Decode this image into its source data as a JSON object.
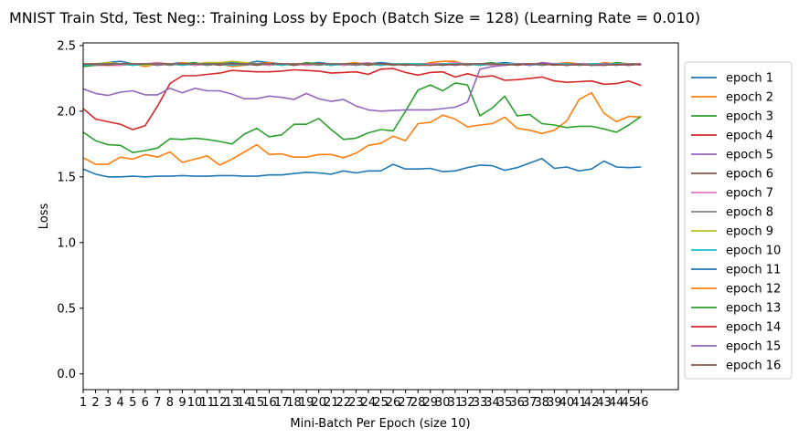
{
  "chart_data": {
    "type": "line",
    "title": "MNIST Train Std, Test Neg:: Training Loss by Epoch (Batch Size = 128) (Learning Rate = 0.010)",
    "xlabel": "Mini-Batch Per Epoch (size 10)",
    "ylabel": "Loss",
    "xlim": [
      1,
      49
    ],
    "ylim": [
      -0.12,
      2.52
    ],
    "x_ticks": [
      1,
      2,
      3,
      4,
      5,
      6,
      7,
      8,
      9,
      10,
      11,
      12,
      13,
      14,
      15,
      16,
      17,
      18,
      19,
      20,
      21,
      22,
      23,
      24,
      25,
      26,
      27,
      28,
      29,
      30,
      31,
      32,
      33,
      34,
      35,
      36,
      37,
      38,
      39,
      40,
      41,
      42,
      43,
      44,
      45,
      46
    ],
    "y_ticks": [
      0.0,
      0.5,
      1.0,
      1.5,
      2.0,
      2.5
    ],
    "y_tick_labels": [
      "0.0",
      "0.5",
      "1.0",
      "1.5",
      "2.0",
      "2.5"
    ],
    "grid": false,
    "legend_position": "right-outside",
    "series": [
      {
        "name": "epoch 1",
        "color": "#1f77b4",
        "values": [
          2.35,
          2.36,
          2.37,
          2.38,
          2.36,
          2.35,
          2.36,
          2.36,
          2.37,
          2.35,
          2.36,
          2.36,
          2.37,
          2.36,
          2.38,
          2.37,
          2.36,
          2.35,
          2.36,
          2.37,
          2.36,
          2.35,
          2.36,
          2.36,
          2.37,
          2.36,
          2.35,
          2.36,
          2.36,
          2.35,
          2.36,
          2.36,
          2.35,
          2.36,
          2.37,
          2.36,
          2.35,
          2.36,
          2.36,
          2.35,
          2.36,
          2.35,
          2.36,
          2.36,
          2.35,
          2.36
        ]
      },
      {
        "name": "epoch 2",
        "color": "#ff7f0e",
        "values": [
          2.36,
          2.35,
          2.36,
          2.35,
          2.36,
          2.34,
          2.36,
          2.35,
          2.37,
          2.36,
          2.35,
          2.36,
          2.34,
          2.35,
          2.36,
          2.37,
          2.35,
          2.36,
          2.35,
          2.36,
          2.35,
          2.36,
          2.37,
          2.35,
          2.36,
          2.35,
          2.36,
          2.35,
          2.37,
          2.38,
          2.38,
          2.35,
          2.36,
          2.35,
          2.36,
          2.35,
          2.36,
          2.35,
          2.36,
          2.37,
          2.36,
          2.35,
          2.37,
          2.36,
          2.35,
          2.36
        ]
      },
      {
        "name": "epoch 3",
        "color": "#2ca02c",
        "values": [
          2.34,
          2.35,
          2.36,
          2.36,
          2.35,
          2.36,
          2.35,
          2.36,
          2.36,
          2.37,
          2.35,
          2.36,
          2.35,
          2.36,
          2.35,
          2.36,
          2.36,
          2.35,
          2.37,
          2.36,
          2.35,
          2.36,
          2.35,
          2.36,
          2.35,
          2.36,
          2.36,
          2.35,
          2.36,
          2.36,
          2.35,
          2.36,
          2.36,
          2.37,
          2.35,
          2.36,
          2.35,
          2.36,
          2.36,
          2.35,
          2.36,
          2.36,
          2.35,
          2.37,
          2.36,
          2.36
        ]
      },
      {
        "name": "epoch 4",
        "color": "#d62728",
        "values": [
          2.36,
          2.35,
          2.35,
          2.35,
          2.36,
          2.36,
          2.35,
          2.36,
          2.36,
          2.35,
          2.36,
          2.36,
          2.35,
          2.36,
          2.36,
          2.35,
          2.36,
          2.35,
          2.36,
          2.36,
          2.35,
          2.36,
          2.36,
          2.36,
          2.35,
          2.36,
          2.36,
          2.35,
          2.36,
          2.36,
          2.36,
          2.35,
          2.36,
          2.36,
          2.35,
          2.36,
          2.36,
          2.35,
          2.36,
          2.36,
          2.35,
          2.36,
          2.36,
          2.35,
          2.36,
          2.36
        ]
      },
      {
        "name": "epoch 5",
        "color": "#9467bd",
        "values": [
          2.35,
          2.36,
          2.36,
          2.35,
          2.36,
          2.36,
          2.35,
          2.36,
          2.36,
          2.35,
          2.36,
          2.36,
          2.35,
          2.36,
          2.36,
          2.35,
          2.36,
          2.36,
          2.35,
          2.36,
          2.36,
          2.35,
          2.36,
          2.36,
          2.35,
          2.36,
          2.36,
          2.35,
          2.36,
          2.36,
          2.35,
          2.36,
          2.36,
          2.35,
          2.36,
          2.36,
          2.35,
          2.36,
          2.36,
          2.35,
          2.36,
          2.36,
          2.35,
          2.36,
          2.35,
          2.36
        ]
      },
      {
        "name": "epoch 6",
        "color": "#8c564b",
        "values": [
          2.36,
          2.36,
          2.35,
          2.36,
          2.36,
          2.35,
          2.36,
          2.36,
          2.35,
          2.36,
          2.36,
          2.35,
          2.36,
          2.36,
          2.35,
          2.36,
          2.36,
          2.35,
          2.36,
          2.36,
          2.35,
          2.36,
          2.36,
          2.35,
          2.36,
          2.36,
          2.35,
          2.36,
          2.36,
          2.35,
          2.36,
          2.36,
          2.35,
          2.36,
          2.36,
          2.35,
          2.36,
          2.36,
          2.35,
          2.36,
          2.36,
          2.35,
          2.36,
          2.36,
          2.35,
          2.36
        ]
      },
      {
        "name": "epoch 7",
        "color": "#e377c2",
        "values": [
          2.35,
          2.36,
          2.36,
          2.35,
          2.36,
          2.36,
          2.37,
          2.36,
          2.36,
          2.35,
          2.36,
          2.36,
          2.35,
          2.36,
          2.36,
          2.35,
          2.36,
          2.36,
          2.35,
          2.36,
          2.36,
          2.35,
          2.36,
          2.37,
          2.35,
          2.36,
          2.36,
          2.35,
          2.36,
          2.36,
          2.37,
          2.36,
          2.36,
          2.35,
          2.36,
          2.36,
          2.35,
          2.37,
          2.36,
          2.35,
          2.36,
          2.36,
          2.35,
          2.36,
          2.36,
          2.35
        ]
      },
      {
        "name": "epoch 8",
        "color": "#7f7f7f",
        "values": [
          2.36,
          2.35,
          2.36,
          2.36,
          2.35,
          2.36,
          2.36,
          2.35,
          2.36,
          2.36,
          2.35,
          2.36,
          2.36,
          2.35,
          2.36,
          2.36,
          2.35,
          2.36,
          2.36,
          2.35,
          2.36,
          2.36,
          2.35,
          2.36,
          2.36,
          2.35,
          2.36,
          2.36,
          2.35,
          2.36,
          2.36,
          2.35,
          2.36,
          2.36,
          2.35,
          2.36,
          2.36,
          2.35,
          2.36,
          2.36,
          2.35,
          2.36,
          2.36,
          2.35,
          2.36,
          2.36
        ]
      },
      {
        "name": "epoch 9",
        "color": "#bcbd22",
        "values": [
          2.36,
          2.36,
          2.37,
          2.36,
          2.36,
          2.35,
          2.36,
          2.36,
          2.36,
          2.36,
          2.37,
          2.37,
          2.38,
          2.37,
          2.36,
          2.36,
          2.35,
          2.36,
          2.36,
          2.36,
          2.35,
          2.36,
          2.36,
          2.36,
          2.35,
          2.36,
          2.36,
          2.36,
          2.35,
          2.36,
          2.36,
          2.36,
          2.35,
          2.36,
          2.36,
          2.36,
          2.35,
          2.36,
          2.36,
          2.36,
          2.35,
          2.36,
          2.36,
          2.36,
          2.35,
          2.36
        ]
      },
      {
        "name": "epoch 10",
        "color": "#17becf",
        "values": [
          2.35,
          2.36,
          2.36,
          2.36,
          2.35,
          2.36,
          2.36,
          2.36,
          2.35,
          2.36,
          2.36,
          2.36,
          2.35,
          2.36,
          2.36,
          2.36,
          2.35,
          2.36,
          2.36,
          2.36,
          2.35,
          2.36,
          2.36,
          2.36,
          2.35,
          2.36,
          2.36,
          2.36,
          2.35,
          2.36,
          2.36,
          2.36,
          2.35,
          2.36,
          2.36,
          2.36,
          2.35,
          2.36,
          2.36,
          2.36,
          2.35,
          2.36,
          2.36,
          2.36,
          2.35,
          2.36
        ]
      },
      {
        "name": "epoch 11",
        "color": "#1f77b4",
        "values": [
          1.56,
          1.52,
          1.5,
          1.5,
          1.505,
          1.5,
          1.505,
          1.505,
          1.51,
          1.505,
          1.505,
          1.51,
          1.51,
          1.505,
          1.505,
          1.515,
          1.515,
          1.525,
          1.535,
          1.53,
          1.52,
          1.545,
          1.53,
          1.545,
          1.545,
          1.595,
          1.56,
          1.56,
          1.565,
          1.54,
          1.545,
          1.57,
          1.59,
          1.585,
          1.55,
          1.57,
          1.605,
          1.64,
          1.565,
          1.575,
          1.545,
          1.56,
          1.62,
          1.575,
          1.57,
          1.575
        ]
      },
      {
        "name": "epoch 12",
        "color": "#ff7f0e",
        "values": [
          1.645,
          1.595,
          1.595,
          1.65,
          1.635,
          1.67,
          1.65,
          1.69,
          1.61,
          1.635,
          1.66,
          1.59,
          1.635,
          1.69,
          1.745,
          1.67,
          1.675,
          1.65,
          1.65,
          1.67,
          1.67,
          1.645,
          1.68,
          1.74,
          1.755,
          1.81,
          1.775,
          1.905,
          1.915,
          1.97,
          1.94,
          1.88,
          1.895,
          1.905,
          1.955,
          1.87,
          1.855,
          1.83,
          1.855,
          1.925,
          2.09,
          2.14,
          1.985,
          1.92,
          1.96,
          1.955
        ]
      },
      {
        "name": "epoch 13",
        "color": "#2ca02c",
        "values": [
          1.84,
          1.775,
          1.745,
          1.74,
          1.685,
          1.7,
          1.72,
          1.79,
          1.785,
          1.795,
          1.785,
          1.77,
          1.75,
          1.825,
          1.87,
          1.805,
          1.82,
          1.9,
          1.9,
          1.945,
          1.86,
          1.785,
          1.795,
          1.835,
          1.86,
          1.85,
          2.0,
          2.16,
          2.2,
          2.155,
          2.215,
          2.2,
          1.965,
          2.025,
          2.115,
          1.965,
          1.975,
          1.905,
          1.895,
          1.875,
          1.885,
          1.885,
          1.865,
          1.84,
          1.895,
          1.96
        ]
      },
      {
        "name": "epoch 14",
        "color": "#d62728",
        "values": [
          2.02,
          1.94,
          1.92,
          1.9,
          1.86,
          1.89,
          2.04,
          2.21,
          2.27,
          2.27,
          2.28,
          2.29,
          2.31,
          2.305,
          2.3,
          2.3,
          2.305,
          2.315,
          2.31,
          2.305,
          2.29,
          2.295,
          2.3,
          2.28,
          2.32,
          2.325,
          2.295,
          2.275,
          2.295,
          2.3,
          2.26,
          2.285,
          2.26,
          2.27,
          2.235,
          2.24,
          2.25,
          2.26,
          2.23,
          2.22,
          2.225,
          2.23,
          2.205,
          2.21,
          2.23,
          2.195
        ]
      },
      {
        "name": "epoch 15",
        "color": "#9467bd",
        "values": [
          2.17,
          2.135,
          2.12,
          2.145,
          2.155,
          2.125,
          2.125,
          2.175,
          2.14,
          2.175,
          2.155,
          2.155,
          2.13,
          2.095,
          2.095,
          2.115,
          2.105,
          2.09,
          2.135,
          2.095,
          2.075,
          2.09,
          2.04,
          2.01,
          2.0,
          2.005,
          2.01,
          2.01,
          2.01,
          2.02,
          2.03,
          2.07,
          2.32,
          2.34,
          2.35,
          2.36,
          2.35,
          2.37,
          2.36,
          2.35,
          2.36,
          2.35,
          2.36,
          2.355,
          2.35,
          2.36
        ]
      },
      {
        "name": "epoch 16",
        "color": "#8c564b",
        "values": [
          2.36,
          2.36,
          2.36,
          2.36,
          2.36,
          2.36,
          2.36,
          2.36,
          2.36,
          2.36,
          2.36,
          2.36,
          2.36,
          2.36,
          2.36,
          2.36,
          2.36,
          2.36,
          2.36,
          2.36,
          2.36,
          2.36,
          2.36,
          2.36,
          2.36,
          2.355,
          2.355,
          2.35,
          2.35,
          2.355,
          2.355,
          2.36,
          2.36,
          2.36,
          2.355,
          2.355,
          2.36,
          2.36,
          2.355,
          2.35,
          2.355,
          2.35,
          2.35,
          2.355,
          2.355,
          2.355
        ]
      }
    ]
  }
}
